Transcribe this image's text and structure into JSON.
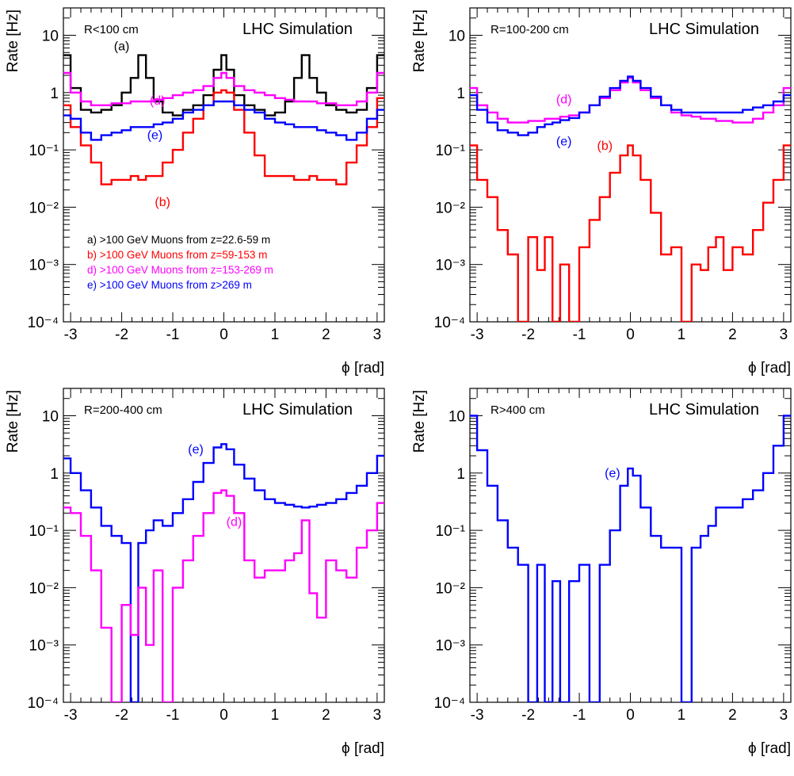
{
  "chart_data": [
    {
      "type": "line",
      "region_label": "R<100 cm",
      "title": "LHC Simulation",
      "xlabel": "ϕ [rad]",
      "ylabel": "Rate [Hz]",
      "xlim": [
        -3.1416,
        3.1416
      ],
      "ylim": [
        0.0001,
        30
      ],
      "yscale": "log",
      "xticks": [
        -3,
        -2,
        -1,
        0,
        1,
        2,
        3
      ],
      "ytick_exponents": [
        -4,
        -3,
        -2,
        -1,
        0,
        1
      ],
      "legend_position": "center-left",
      "legend": [
        {
          "text": "a) >100 GeV Muons from z=22.6-59 m",
          "color": "#000000"
        },
        {
          "text": "b) >100 GeV Muons from z=59-153 m",
          "color": "#ff0000"
        },
        {
          "text": "d) >100 GeV Muons from z=153-269 m",
          "color": "#ff00ff"
        },
        {
          "text": "e) >100 GeV Muons from z>269 m",
          "color": "#0000ff"
        }
      ],
      "annotations": [
        {
          "text": "(a)",
          "x": -2.0,
          "y": 5.5,
          "color": "#000000"
        },
        {
          "text": "(d)",
          "x": -1.3,
          "y": 0.62,
          "color": "#ff00ff"
        },
        {
          "text": "(e)",
          "x": -1.35,
          "y": 0.155,
          "color": "#0000ff"
        },
        {
          "text": "(b)",
          "x": -1.2,
          "y": 0.0105,
          "color": "#ff0000"
        }
      ],
      "x": [
        -3.1,
        -2.9,
        -2.7,
        -2.5,
        -2.3,
        -2.1,
        -1.9,
        -1.75,
        -1.6,
        -1.45,
        -1.3,
        -1.1,
        -0.9,
        -0.7,
        -0.5,
        -0.3,
        -0.1,
        0.0,
        0.1,
        0.3,
        0.5,
        0.7,
        0.9,
        1.1,
        1.3,
        1.45,
        1.6,
        1.75,
        1.9,
        2.1,
        2.3,
        2.5,
        2.7,
        2.9,
        3.1
      ],
      "series": [
        {
          "color": "#000000",
          "values": [
            4.5,
            1.2,
            0.5,
            0.45,
            0.5,
            0.6,
            1.0,
            1.8,
            4.5,
            1.8,
            0.7,
            0.45,
            0.4,
            0.5,
            0.6,
            0.9,
            2.5,
            4.5,
            2.5,
            0.9,
            0.6,
            0.5,
            0.4,
            0.45,
            0.7,
            1.8,
            4.5,
            1.8,
            1.0,
            0.6,
            0.5,
            0.45,
            0.5,
            1.2,
            4.5
          ]
        },
        {
          "color": "#ff0000",
          "values": [
            0.6,
            0.25,
            0.12,
            0.06,
            0.025,
            0.03,
            0.03,
            0.035,
            0.03,
            0.035,
            0.035,
            0.06,
            0.1,
            0.2,
            0.35,
            0.6,
            1.0,
            1.1,
            1.0,
            0.5,
            0.2,
            0.08,
            0.035,
            0.035,
            0.035,
            0.03,
            0.03,
            0.035,
            0.03,
            0.03,
            0.025,
            0.06,
            0.12,
            0.25,
            0.8
          ]
        },
        {
          "color": "#ff00ff",
          "values": [
            2.2,
            1.0,
            0.7,
            0.6,
            0.6,
            0.65,
            0.65,
            0.7,
            0.7,
            0.7,
            0.75,
            0.8,
            0.9,
            1.0,
            1.1,
            1.3,
            1.8,
            2.2,
            1.8,
            1.3,
            1.1,
            1.0,
            0.9,
            0.8,
            0.75,
            0.7,
            0.7,
            0.7,
            0.65,
            0.65,
            0.6,
            0.6,
            0.7,
            1.0,
            2.2
          ]
        },
        {
          "color": "#0000ff",
          "values": [
            0.4,
            0.35,
            0.2,
            0.15,
            0.18,
            0.2,
            0.22,
            0.25,
            0.25,
            0.25,
            0.28,
            0.3,
            0.35,
            0.45,
            0.5,
            0.6,
            0.7,
            0.7,
            0.7,
            0.6,
            0.5,
            0.45,
            0.35,
            0.3,
            0.28,
            0.25,
            0.25,
            0.25,
            0.22,
            0.2,
            0.18,
            0.15,
            0.2,
            0.35,
            0.5
          ]
        }
      ]
    },
    {
      "type": "line",
      "region_label": "R=100-200 cm",
      "title": "LHC Simulation",
      "xlabel": "ϕ [rad]",
      "ylabel": "Rate [Hz]",
      "xlim": [
        -3.1416,
        3.1416
      ],
      "ylim": [
        0.0001,
        30
      ],
      "yscale": "log",
      "xticks": [
        -3,
        -2,
        -1,
        0,
        1,
        2,
        3
      ],
      "ytick_exponents": [
        -4,
        -3,
        -2,
        -1,
        0,
        1
      ],
      "legend": [],
      "annotations": [
        {
          "text": "(d)",
          "x": -1.3,
          "y": 0.65,
          "color": "#ff00ff"
        },
        {
          "text": "(e)",
          "x": -1.3,
          "y": 0.12,
          "color": "#0000ff"
        },
        {
          "text": "(b)",
          "x": -0.5,
          "y": 0.1,
          "color": "#ff0000"
        }
      ],
      "x": [
        -3.1,
        -2.9,
        -2.7,
        -2.5,
        -2.3,
        -2.1,
        -1.9,
        -1.75,
        -1.6,
        -1.45,
        -1.3,
        -1.1,
        -0.9,
        -0.7,
        -0.5,
        -0.3,
        -0.1,
        0.0,
        0.1,
        0.3,
        0.5,
        0.7,
        0.9,
        1.1,
        1.3,
        1.45,
        1.6,
        1.75,
        1.9,
        2.1,
        2.3,
        2.5,
        2.7,
        2.9,
        3.1
      ],
      "series": [
        {
          "color": "#ff00ff",
          "values": [
            1.2,
            0.6,
            0.45,
            0.35,
            0.3,
            0.3,
            0.32,
            0.32,
            0.35,
            0.35,
            0.38,
            0.4,
            0.45,
            0.6,
            0.8,
            1.1,
            1.5,
            1.8,
            1.5,
            1.1,
            0.8,
            0.6,
            0.45,
            0.4,
            0.38,
            0.35,
            0.35,
            0.32,
            0.32,
            0.3,
            0.3,
            0.35,
            0.45,
            0.6,
            1.2
          ]
        },
        {
          "color": "#0000ff",
          "values": [
            0.9,
            0.5,
            0.3,
            0.22,
            0.2,
            0.18,
            0.2,
            0.25,
            0.28,
            0.3,
            0.33,
            0.36,
            0.45,
            0.6,
            0.85,
            1.2,
            1.6,
            1.9,
            1.6,
            1.2,
            0.85,
            0.6,
            0.5,
            0.45,
            0.45,
            0.45,
            0.45,
            0.45,
            0.45,
            0.45,
            0.5,
            0.55,
            0.6,
            0.7,
            0.9
          ]
        },
        {
          "color": "#ff0000",
          "values": [
            0.12,
            0.03,
            0.015,
            0.004,
            0.0015,
            0.0001,
            0.003,
            0.0008,
            0.003,
            0.0001,
            0.001,
            0.0001,
            0.002,
            0.006,
            0.015,
            0.04,
            0.08,
            0.12,
            0.08,
            0.03,
            0.008,
            0.0015,
            0.002,
            0.0001,
            0.001,
            0.0008,
            0.002,
            0.003,
            0.0008,
            0.002,
            0.0015,
            0.004,
            0.012,
            0.03,
            0.12
          ]
        }
      ]
    },
    {
      "type": "line",
      "region_label": "R=200-400 cm",
      "title": "LHC Simulation",
      "xlabel": "ϕ [rad]",
      "ylabel": "Rate [Hz]",
      "xlim": [
        -3.1416,
        3.1416
      ],
      "ylim": [
        0.0001,
        30
      ],
      "yscale": "log",
      "xticks": [
        -3,
        -2,
        -1,
        0,
        1,
        2,
        3
      ],
      "ytick_exponents": [
        -4,
        -3,
        -2,
        -1,
        0,
        1
      ],
      "legend": [],
      "annotations": [
        {
          "text": "(e)",
          "x": -0.55,
          "y": 2.2,
          "color": "#0000ff"
        },
        {
          "text": "(d)",
          "x": 0.2,
          "y": 0.12,
          "color": "#ff00ff"
        }
      ],
      "x": [
        -3.1,
        -2.9,
        -2.7,
        -2.5,
        -2.3,
        -2.1,
        -1.9,
        -1.75,
        -1.6,
        -1.45,
        -1.3,
        -1.1,
        -0.9,
        -0.7,
        -0.5,
        -0.3,
        -0.1,
        0.0,
        0.1,
        0.3,
        0.5,
        0.7,
        0.9,
        1.1,
        1.3,
        1.45,
        1.6,
        1.75,
        1.9,
        2.1,
        2.3,
        2.5,
        2.7,
        2.9,
        3.1
      ],
      "series": [
        {
          "color": "#0000ff",
          "values": [
            1.8,
            1.0,
            0.5,
            0.25,
            0.12,
            0.08,
            0.06,
            0.0001,
            0.06,
            0.1,
            0.15,
            0.12,
            0.2,
            0.35,
            0.7,
            1.5,
            2.8,
            3.2,
            2.6,
            1.4,
            0.8,
            0.5,
            0.35,
            0.3,
            0.28,
            0.26,
            0.25,
            0.26,
            0.28,
            0.3,
            0.35,
            0.45,
            0.6,
            1.0,
            2.0
          ]
        },
        {
          "color": "#ff00ff",
          "values": [
            0.25,
            0.2,
            0.08,
            0.02,
            0.002,
            0.0001,
            0.005,
            0.0015,
            0.01,
            0.001,
            0.02,
            0.0001,
            0.01,
            0.03,
            0.08,
            0.2,
            0.45,
            0.5,
            0.4,
            0.2,
            0.03,
            0.015,
            0.02,
            0.02,
            0.03,
            0.04,
            0.15,
            0.008,
            0.003,
            0.03,
            0.02,
            0.015,
            0.05,
            0.1,
            0.3
          ]
        }
      ]
    },
    {
      "type": "line",
      "region_label": "R>400 cm",
      "title": "LHC Simulation",
      "xlabel": "ϕ [rad]",
      "ylabel": "Rate [Hz]",
      "xlim": [
        -3.1416,
        3.1416
      ],
      "ylim": [
        0.0001,
        30
      ],
      "yscale": "log",
      "xticks": [
        -3,
        -2,
        -1,
        0,
        1,
        2,
        3
      ],
      "ytick_exponents": [
        -4,
        -3,
        -2,
        -1,
        0,
        1
      ],
      "legend": [],
      "annotations": [
        {
          "text": "(e)",
          "x": -0.35,
          "y": 0.85,
          "color": "#0000ff"
        }
      ],
      "x": [
        -3.1,
        -2.9,
        -2.7,
        -2.5,
        -2.3,
        -2.1,
        -1.9,
        -1.75,
        -1.6,
        -1.45,
        -1.3,
        -1.1,
        -0.9,
        -0.7,
        -0.5,
        -0.3,
        -0.1,
        0.0,
        0.1,
        0.3,
        0.5,
        0.7,
        0.9,
        1.1,
        1.3,
        1.45,
        1.6,
        1.75,
        1.9,
        2.1,
        2.3,
        2.5,
        2.7,
        2.9,
        3.1
      ],
      "series": [
        {
          "color": "#0000ff",
          "values": [
            10,
            2.5,
            0.6,
            0.15,
            0.05,
            0.025,
            0.0001,
            0.025,
            0.0001,
            0.013,
            0.0001,
            0.013,
            0.025,
            0.0001,
            0.025,
            0.1,
            0.6,
            1.2,
            0.9,
            0.25,
            0.08,
            0.05,
            0.05,
            0.0001,
            0.05,
            0.08,
            0.12,
            0.25,
            0.25,
            0.25,
            0.35,
            0.5,
            1.0,
            3.0,
            10
          ]
        }
      ]
    }
  ]
}
